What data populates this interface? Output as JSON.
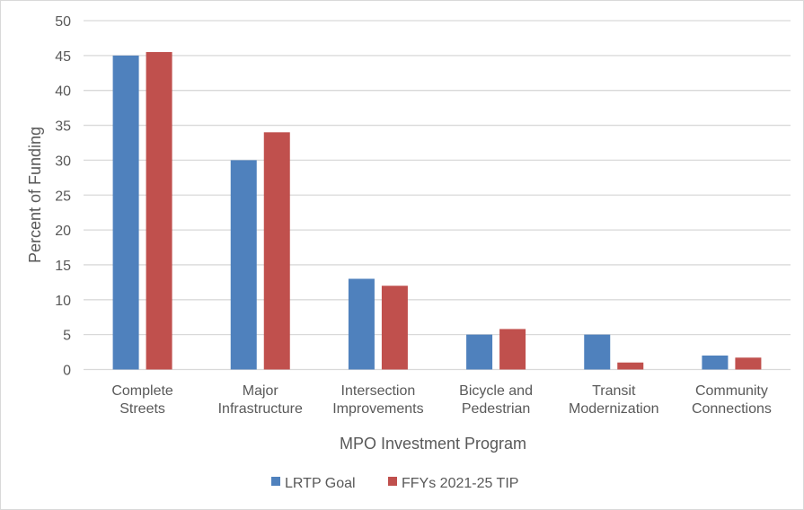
{
  "chart_data": {
    "type": "bar",
    "title": "",
    "xlabel": "MPO Investment Program",
    "ylabel": "Percent of Funding",
    "ylim": [
      0,
      50
    ],
    "yticks": [
      0,
      5,
      10,
      15,
      20,
      25,
      30,
      35,
      40,
      45,
      50
    ],
    "grid": true,
    "legend_position": "bottom",
    "categories": [
      [
        "Complete",
        "Streets"
      ],
      [
        "Major",
        "Infrastructure"
      ],
      [
        "Intersection",
        "Improvements"
      ],
      [
        "Bicycle and",
        "Pedestrian"
      ],
      [
        "Transit",
        "Modernization"
      ],
      [
        "Community",
        "Connections"
      ]
    ],
    "series": [
      {
        "name": "LRTP Goal",
        "color": "#4f81bd",
        "values": [
          45,
          30,
          13,
          5,
          5,
          2
        ]
      },
      {
        "name": "FFYs 2021-25 TIP",
        "color": "#c0504d",
        "values": [
          45.5,
          34,
          12,
          5.8,
          1,
          1.7
        ]
      }
    ]
  }
}
